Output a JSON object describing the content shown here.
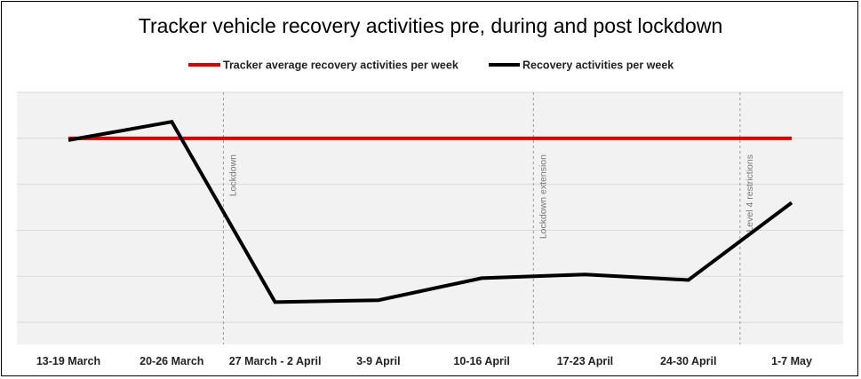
{
  "chart_data": {
    "type": "line",
    "title": "Tracker vehicle recovery activities pre, during and post lockdown",
    "categories": [
      "13-19 March",
      "20-26 March",
      "27 March - 2 April",
      "3-9 April",
      "10-16 April",
      "17-23 April",
      "24-30 April",
      "1-7 May"
    ],
    "series": [
      {
        "name": "Tracker average recovery activities per week",
        "color": "#e00000",
        "values": [
          100,
          100,
          100,
          100,
          100,
          100,
          100,
          100
        ]
      },
      {
        "name": "Recovery activities per week",
        "color": "#000000",
        "values": [
          99,
          109,
          11,
          12,
          24,
          26,
          23,
          65
        ]
      }
    ],
    "ylim": [
      -12,
      125
    ],
    "yticks": [
      0,
      25,
      50,
      75,
      100,
      125
    ],
    "grid": true,
    "legend_position": "top",
    "annotations": [
      {
        "text": "Lockdown",
        "between": [
          1,
          2
        ]
      },
      {
        "text": "Lockdown extension",
        "between": [
          4,
          5
        ]
      },
      {
        "text": "Level 4 restrictions",
        "between": [
          6,
          7
        ]
      }
    ]
  }
}
